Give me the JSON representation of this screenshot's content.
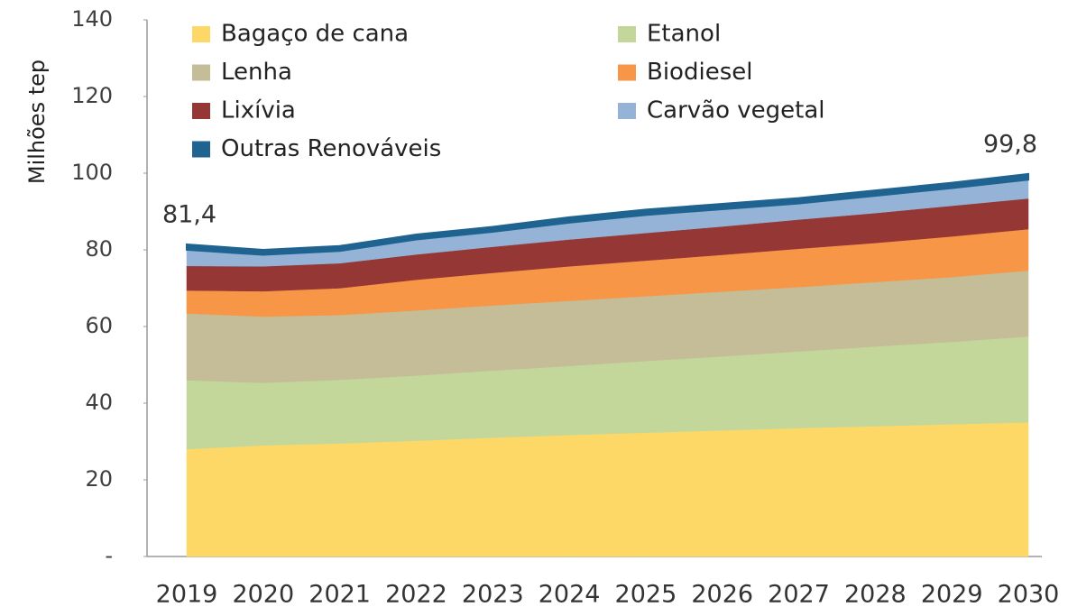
{
  "chart_data": {
    "type": "stacked_area",
    "ylabel": "Milhões tep",
    "categories": [
      "2019",
      "2020",
      "2021",
      "2022",
      "2023",
      "2024",
      "2025",
      "2026",
      "2027",
      "2028",
      "2029",
      "2030"
    ],
    "series": [
      {
        "name": "Bagaço de cana",
        "color": "#fdd866",
        "values": [
          28,
          29,
          29.5,
          30.2,
          31,
          31.7,
          32.3,
          32.9,
          33.5,
          34,
          34.5,
          35
        ]
      },
      {
        "name": "Etanol",
        "color": "#c4d79b",
        "values": [
          18,
          16.3,
          16.6,
          17,
          17.5,
          18,
          18.7,
          19.3,
          20,
          20.8,
          21.5,
          22.4
        ]
      },
      {
        "name": "Lenha",
        "color": "#c4bd97",
        "values": [
          17.4,
          17.3,
          16.9,
          17,
          17,
          17,
          16.9,
          16.9,
          16.8,
          16.8,
          16.9,
          17.2
        ]
      },
      {
        "name": "Biodiesel",
        "color": "#f79646",
        "values": [
          6,
          6.6,
          7,
          8,
          8.5,
          9,
          9.3,
          9.6,
          10,
          10.2,
          10.6,
          10.8
        ]
      },
      {
        "name": "Lixívia",
        "color": "#953735",
        "values": [
          6.4,
          6.5,
          6.5,
          6.6,
          6.8,
          7,
          7.2,
          7.4,
          7.6,
          7.8,
          8,
          8
        ]
      },
      {
        "name": "Carvão vegetal",
        "color": "#95b3d7",
        "values": [
          4.2,
          3.0,
          3.2,
          3.9,
          3.9,
          4.4,
          4.7,
          4.5,
          4.2,
          4.5,
          4.6,
          4.9
        ]
      },
      {
        "name": "Outras Renováveis",
        "color": "#1f6391",
        "values": [
          1.4,
          1.3,
          1.3,
          1.3,
          1.3,
          1.4,
          1.4,
          1.4,
          1.4,
          1.4,
          1.4,
          1.5
        ]
      }
    ],
    "annotations": [
      {
        "text": "81,4",
        "x": "2019",
        "y": 81.4
      },
      {
        "text": "99,8",
        "x": "2030",
        "y": 99.8
      }
    ],
    "ylim": [
      0,
      140
    ],
    "yticks": [
      {
        "value": 0,
        "label": "-"
      },
      20,
      40,
      60,
      80,
      100,
      120,
      140
    ],
    "grid": false
  }
}
